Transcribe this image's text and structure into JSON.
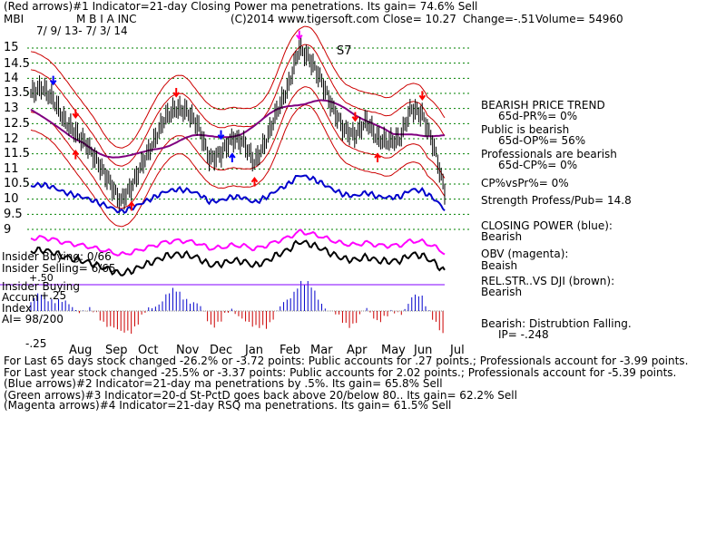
{
  "header": {
    "line1": "(Red arrows)#1 Indicator=21-day Closing Power ma penetrations. Its gain= 74.6% Sell",
    "ticker": "MBI",
    "company": "M B I A INC",
    "copyright": "(C)2014 www.tigersoft.com",
    "close": "Close=  10.27",
    "change": "Change=-.51",
    "volume": "Volume= 54960",
    "date_range": "7/ 9/ 13- 7/ 3/ 14"
  },
  "y_axis": {
    "ticks": [
      "15",
      "14.5",
      "14",
      "13.5",
      "13",
      "12.5",
      "12",
      "11.5",
      "11",
      "10.5",
      "10",
      "9.5",
      "9"
    ]
  },
  "x_axis": {
    "months": [
      "Aug",
      "Sep",
      "Oct",
      "Nov",
      "Dec",
      "Jan",
      "Feb",
      "Mar",
      "Apr",
      "May",
      "Jun",
      "Jul"
    ]
  },
  "signal_label": "S7",
  "panels": {
    "insider_buying": "Insider Buying: 0/66",
    "insider_selling": "Insider Selling= 6/65",
    "insider_buying2": "Insider Buying",
    "accum1": "Accum",
    "accum_plus": "+.25",
    "plus50": "+.50",
    "index": "Index",
    "ai": "AI= 98/200",
    "minus25": "-.25"
  },
  "right_panel": {
    "bearish_trend": "BEARISH PRICE TREND",
    "pr": "65d-PR%= 0%",
    "public_bearish": "Public is bearish",
    "op": "65d-OP%= 56%",
    "prof_bearish": "Professionals are bearish",
    "cp": "65d-CP%= 0%",
    "cpvspr": "CP%vsPr%=  0%",
    "strength": "Strength Profess/Pub= 14.8",
    "closing_power": "CLOSING POWER (blue):",
    "cp_status": "Bearish",
    "obv": "OBV (magenta):",
    "obv_status": "Beaish",
    "relstr": "REL.STR..VS DJI (brown):",
    "relstr_status": "Bearish",
    "distribution": "Bearish: Distrubtion Falling.",
    "ip": "IP= -.248"
  },
  "bottom": {
    "line1": "For Last 65 days stock changed -26.2% or -3.72 points:  Public accounts for  .27 points.;  Professionals account for -3.99 points.",
    "line2": "For Last year stock changed -25.5% or -3.37 points:  Public accounts for  2.02 points.;  Professionals account for -5.39 points.",
    "line3": "(Blue arrows)#2 Indicator=21-day ma penetrations by .5%. Its gain= 65.8% Sell",
    "line4": "(Green arrows)#3 Indicator=20-d St-PctD goes back above 20/below 80.. Its gain= 62.2% Sell",
    "line5": "(Magenta arrows)#4 Indicator=21-day RSQ ma penetrations. Its gain= 61.5% Sell"
  },
  "colors": {
    "price": "#000000",
    "band": "#cc0000",
    "ma": "#800080",
    "closing_power": "#0000cc",
    "obv": "#ff00ff",
    "accum_pos": "#0000cc",
    "accum_neg": "#cc0000",
    "grid": "#008000",
    "arrow_red": "#ff0000",
    "arrow_blue": "#0000ff",
    "arrow_magenta": "#ff00ff"
  },
  "chart_data": {
    "type": "line",
    "title": "M B I A INC",
    "xlabel": "",
    "ylabel": "",
    "ylim": [
      9,
      15.2
    ],
    "x": [
      "Jul",
      "Aug",
      "Aug",
      "Aug",
      "Aug",
      "Sep",
      "Sep",
      "Sep",
      "Sep",
      "Oct",
      "Oct",
      "Oct",
      "Oct",
      "Nov",
      "Nov",
      "Nov",
      "Dec",
      "Dec",
      "Dec",
      "Jan",
      "Jan",
      "Jan",
      "Feb",
      "Feb",
      "Feb",
      "Mar",
      "Mar",
      "Mar",
      "Apr",
      "Apr",
      "Apr",
      "May",
      "May",
      "May",
      "Jun",
      "Jun",
      "Jun",
      "Jul"
    ],
    "series": [
      {
        "name": "Close",
        "values": [
          13.5,
          13.7,
          13.3,
          12.6,
          12.2,
          11.8,
          11.2,
          10.6,
          9.9,
          10.4,
          11.2,
          11.9,
          12.7,
          13.0,
          12.9,
          12.4,
          11.3,
          11.5,
          12.0,
          11.9,
          11.2,
          11.9,
          12.9,
          13.7,
          15.0,
          14.6,
          13.9,
          13.0,
          12.3,
          12.1,
          12.6,
          12.0,
          11.9,
          12.0,
          13.0,
          12.8,
          11.8,
          10.27
        ]
      }
    ],
    "grid": true,
    "legend": "none"
  }
}
